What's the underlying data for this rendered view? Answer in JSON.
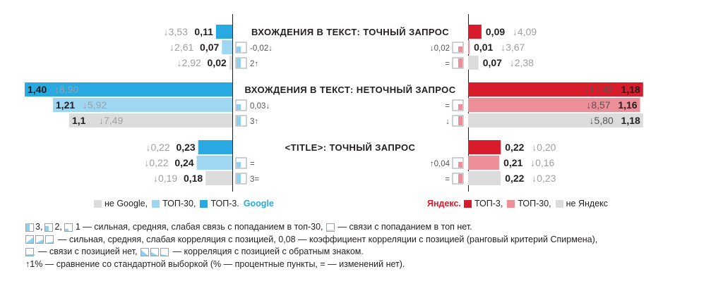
{
  "colors": {
    "google_top3": "#29a9e1",
    "google_top30": "#9fd6f1",
    "not_engine": "#dcdcdc",
    "yandex_top3": "#d71d2b",
    "yandex_top30": "#ec8f98",
    "arrow_grey": "#a0a0a0",
    "yandex_text": "#d71d2b",
    "google_text": "#29a9e1"
  },
  "chart_data": {
    "type": "bar",
    "groups": [
      {
        "title": "ВХОЖДЕНИЯ В ТЕКСТ: ТОЧНЫЙ ЗАПРОС",
        "google": {
          "rows": [
            {
              "level": "top3",
              "value": 0.11,
              "value_text": "0,11",
              "change_text": "↓3,53"
            },
            {
              "level": "top30",
              "value": 0.07,
              "value_text": "0,07",
              "change_text": "↓2,61"
            },
            {
              "level": "none",
              "value": 0.02,
              "value_text": "0,02",
              "change_text": "↓2,92"
            }
          ],
          "corr_text": "-0,02↓",
          "strength_text": "2↑"
        },
        "yandex": {
          "rows": [
            {
              "level": "top3",
              "value": 0.09,
              "value_text": "0,09",
              "change_text": "↓4,09"
            },
            {
              "level": "top30",
              "value": 0.01,
              "value_text": "0,01",
              "change_text": "↓3,67"
            },
            {
              "level": "none",
              "value": 0.07,
              "value_text": "0,07",
              "change_text": "↓2,38"
            }
          ],
          "corr_text": "↓0,02",
          "strength_text": "="
        }
      },
      {
        "title": "ВХОЖДЕНИЯ В ТЕКСТ: НЕТОЧНЫЙ ЗАПРОС",
        "google": {
          "rows": [
            {
              "level": "top3",
              "value": 1.4,
              "value_text": "1,40",
              "change_text": "↓8,90"
            },
            {
              "level": "top30",
              "value": 1.21,
              "value_text": "1,21",
              "change_text": "↓5,92"
            },
            {
              "level": "none",
              "value": 1.1,
              "value_text": "1,1",
              "change_text": "↓7,49"
            }
          ],
          "corr_text": "0,03↓",
          "strength_text": "3↑"
        },
        "yandex": {
          "rows": [
            {
              "level": "top3",
              "value": 1.18,
              "value_text": "1,18",
              "change_text": "↓11,42"
            },
            {
              "level": "top30",
              "value": 1.16,
              "value_text": "1,16",
              "change_text": "↓8,57"
            },
            {
              "level": "none",
              "value": 1.18,
              "value_text": "1,18",
              "change_text": "↓5,80"
            }
          ],
          "corr_text": "=",
          "strength_text": "↓"
        }
      },
      {
        "title": "<TITLE>: ТОЧНЫЙ ЗАПРОС",
        "google": {
          "rows": [
            {
              "level": "top3",
              "value": 0.23,
              "value_text": "0,23",
              "change_text": "↓0,22"
            },
            {
              "level": "top30",
              "value": 0.24,
              "value_text": "0,24",
              "change_text": "↓0,22"
            },
            {
              "level": "none",
              "value": 0.18,
              "value_text": "0,18",
              "change_text": "↓0,19"
            }
          ],
          "corr_text": "=",
          "strength_text": "3="
        },
        "yandex": {
          "rows": [
            {
              "level": "top3",
              "value": 0.22,
              "value_text": "0,22",
              "change_text": "↓0,20"
            },
            {
              "level": "top30",
              "value": 0.21,
              "value_text": "0,21",
              "change_text": "↓0,16"
            },
            {
              "level": "none",
              "value": 0.22,
              "value_text": "0,22",
              "change_text": "↓0,23"
            }
          ],
          "corr_text": "↑0,04",
          "strength_text": "="
        }
      }
    ]
  },
  "legend": {
    "google": {
      "none": "не Google,",
      "top30": "ТОП-30,",
      "top3": "ТОП-3.",
      "brand": "Google"
    },
    "yandex": {
      "brand": "Яндекс.",
      "top3": "ТОП-3,",
      "top30": "ТОП-30,",
      "none": "не Яндекс"
    }
  },
  "notes": {
    "line1_a": "3,",
    "line1_b": "2,",
    "line1_c": "1 — сильная, средняя, слабая связь с попаданием в топ-30,",
    "line1_d": "— связи с попаданием в топ нет.",
    "line2": "— сильная, средняя, слабая корреляция с позицией, 0,08 — коэффициент корреляции с позицией (ранговый критерий Спирмена),",
    "line3_a": "— связи с позицией нет,",
    "line3_b": "— корреляция с позицией с обратным знаком.",
    "line4": "↑1% — сравнение со стандартной выборкой (% — процентные пункты, = — изменений нет)."
  }
}
